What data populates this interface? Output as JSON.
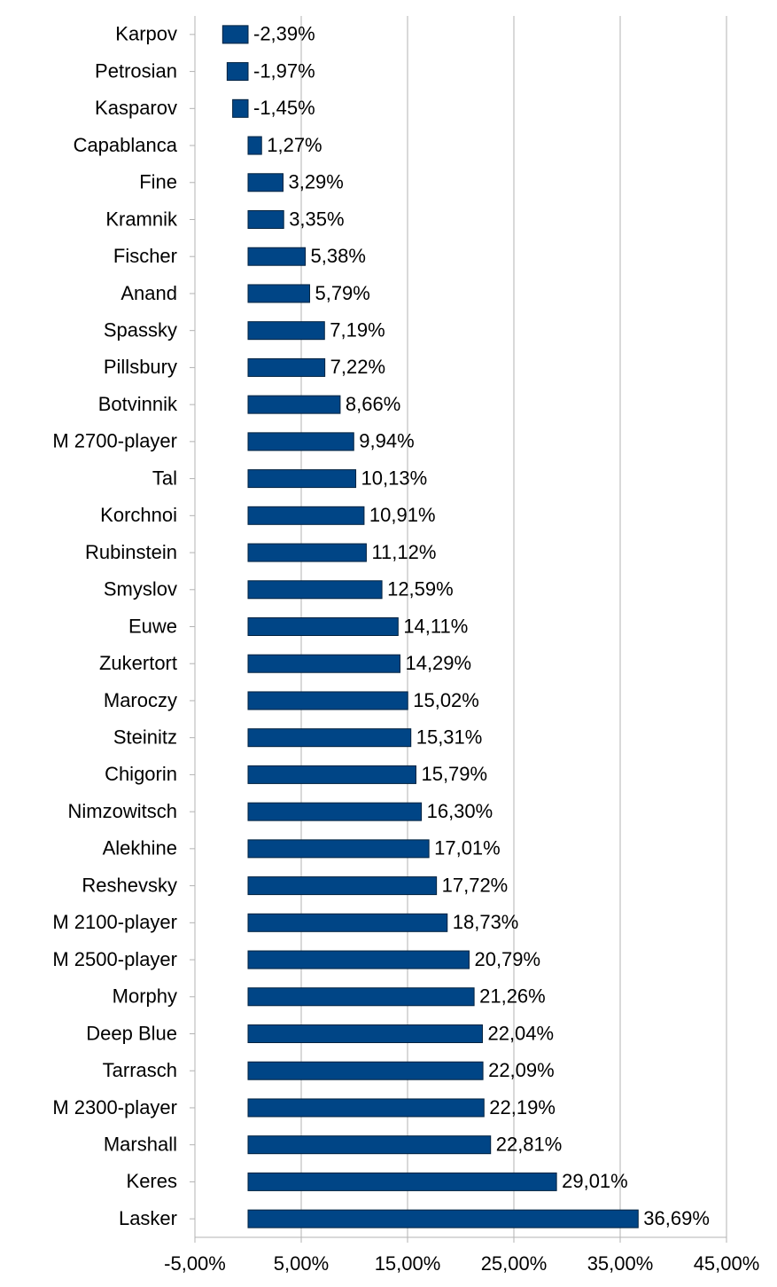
{
  "chart_data": {
    "type": "hbar",
    "categories": [
      "Karpov",
      "Petrosian",
      "Kasparov",
      "Capablanca",
      "Fine",
      "Kramnik",
      "Fischer",
      "Anand",
      "Spassky",
      "Pillsbury",
      "Botvinnik",
      "M 2700-player",
      "Tal",
      "Korchnoi",
      "Rubinstein",
      "Smyslov",
      "Euwe",
      "Zukertort",
      "Maroczy",
      "Steinitz",
      "Chigorin",
      "Nimzowitsch",
      "Alekhine",
      "Reshevsky",
      "M 2100-player",
      "M 2500-player",
      "Morphy",
      "Deep Blue",
      "Tarrasch",
      "M 2300-player",
      "Marshall",
      "Keres",
      "Lasker"
    ],
    "values": [
      -2.39,
      -1.97,
      -1.45,
      1.27,
      3.29,
      3.35,
      5.38,
      5.79,
      7.19,
      7.22,
      8.66,
      9.94,
      10.13,
      10.91,
      11.12,
      12.59,
      14.11,
      14.29,
      15.02,
      15.31,
      15.79,
      16.3,
      17.01,
      17.72,
      18.73,
      20.79,
      21.26,
      22.04,
      22.09,
      22.19,
      22.81,
      29.01,
      36.69
    ],
    "value_labels": [
      "-2,39%",
      "-1,97%",
      "-1,45%",
      "1,27%",
      "3,29%",
      "3,35%",
      "5,38%",
      "5,79%",
      "7,19%",
      "7,22%",
      "8,66%",
      "9,94%",
      "10,13%",
      "10,91%",
      "11,12%",
      "12,59%",
      "14,11%",
      "14,29%",
      "15,02%",
      "15,31%",
      "15,79%",
      "16,30%",
      "17,01%",
      "17,72%",
      "18,73%",
      "20,79%",
      "21,26%",
      "22,04%",
      "22,09%",
      "22,19%",
      "22,81%",
      "29,01%",
      "36,69%"
    ],
    "color": "#004586",
    "xlim": [
      -5,
      45
    ],
    "xticks": [
      {
        "value": -5,
        "label": "-5,00%"
      },
      {
        "value": 5,
        "label": "5,00%"
      },
      {
        "value": 15,
        "label": "15,00%"
      },
      {
        "value": 25,
        "label": "25,00%"
      },
      {
        "value": 35,
        "label": "35,00%"
      },
      {
        "value": 45,
        "label": "45,00%"
      }
    ],
    "grid": true
  }
}
